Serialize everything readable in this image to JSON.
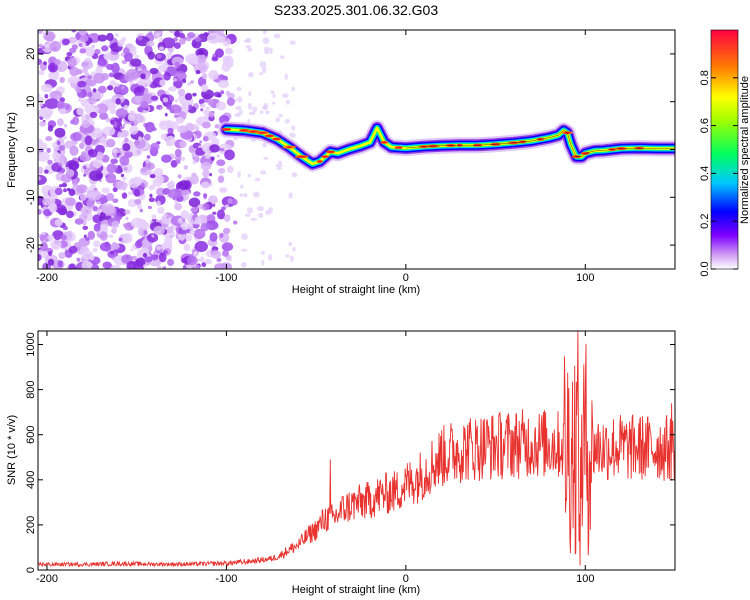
{
  "title": "S233.2025.301.06.32.G03",
  "colors": {
    "snr_line": "#e8322e",
    "axis": "#000000",
    "noise": "#8a2be2",
    "track_ridge": "#ff2020"
  },
  "chart_data": [
    {
      "type": "heatmap",
      "xlabel": "Height of straight line (km)",
      "ylabel": "Frequency (Hz)",
      "xlim": [
        -205,
        150
      ],
      "ylim": [
        -25,
        25
      ],
      "xticks": [
        -200,
        -100,
        0,
        100
      ],
      "yticks": [
        -20,
        -10,
        0,
        10,
        20
      ],
      "noise_region_x": [
        -205,
        -95
      ],
      "track": {
        "x": [
          -100,
          -90,
          -80,
          -72,
          -65,
          -58,
          -52,
          -48,
          -45,
          -42,
          -38,
          -32,
          -25,
          -20,
          -16,
          -12,
          -8,
          0,
          10,
          20,
          30,
          40,
          50,
          60,
          70,
          80,
          85,
          88,
          90,
          92,
          95,
          98,
          100,
          105,
          110,
          120,
          130,
          140,
          150
        ],
        "y": [
          4.2,
          4.0,
          3.5,
          2.2,
          0.5,
          -1.5,
          -3.0,
          -2.5,
          -1.5,
          -0.5,
          -0.8,
          0.0,
          0.8,
          1.5,
          4.5,
          1.5,
          0.5,
          0.3,
          0.6,
          0.8,
          0.9,
          0.9,
          1.1,
          1.4,
          1.8,
          2.5,
          3.0,
          4.0,
          3.5,
          1.0,
          -1.5,
          -1.5,
          -0.8,
          -0.3,
          -0.2,
          0.2,
          0.3,
          0.2,
          0.2
        ]
      },
      "colorbar": {
        "label": "Normalized spectral amplitude",
        "range": [
          0,
          1
        ],
        "ticks": [
          "0.0",
          "0.2",
          "0.4",
          "0.6",
          "0.8"
        ]
      }
    },
    {
      "type": "line",
      "xlabel": "Height of straight line (km)",
      "ylabel": "SNR (10 * v/v)",
      "xlim": [
        -205,
        150
      ],
      "ylim": [
        0,
        1060
      ],
      "xticks": [
        -200,
        -100,
        0,
        100
      ],
      "yticks": [
        0,
        200,
        400,
        600,
        800,
        1000
      ],
      "series": [
        {
          "name": "SNR",
          "x": [
            -205,
            -180,
            -160,
            -140,
            -120,
            -100,
            -90,
            -80,
            -75,
            -70,
            -65,
            -60,
            -55,
            -50,
            -45,
            -40,
            -35,
            -30,
            -25,
            -20,
            -15,
            -10,
            -5,
            0,
            5,
            10,
            15,
            20,
            25,
            30,
            35,
            40,
            45,
            50,
            55,
            60,
            65,
            70,
            75,
            80,
            85,
            90,
            95,
            100,
            105,
            110,
            115,
            120,
            125,
            130,
            135,
            140,
            145,
            150
          ],
          "y": [
            25,
            25,
            28,
            26,
            26,
            30,
            35,
            45,
            50,
            65,
            90,
            110,
            150,
            180,
            230,
            230,
            270,
            290,
            300,
            310,
            330,
            340,
            350,
            380,
            400,
            430,
            470,
            500,
            520,
            530,
            540,
            545,
            550,
            550,
            555,
            560,
            560,
            565,
            560,
            560,
            555,
            550,
            545,
            550,
            545,
            540,
            545,
            545,
            540,
            545,
            540,
            545,
            540,
            540
          ],
          "spikes": [
            {
              "x": -42,
              "y": 490
            },
            {
              "x": 20,
              "y": 620
            },
            {
              "x": 45,
              "y": 650
            },
            {
              "x": 78,
              "y": 700
            },
            {
              "x": 96,
              "y": 1060
            },
            {
              "x": 97,
              "y": 20
            },
            {
              "x": 148,
              "y": 740
            }
          ]
        }
      ]
    }
  ]
}
